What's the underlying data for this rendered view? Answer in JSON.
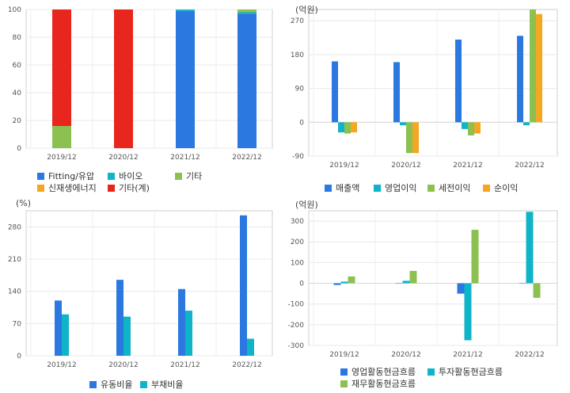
{
  "chart_data": [
    {
      "type": "bar",
      "stacked": true,
      "unit": "",
      "categories": [
        "2019/12",
        "2020/12",
        "2021/12",
        "2022/12"
      ],
      "ylim": [
        0,
        100
      ],
      "yticks": [
        0,
        20,
        40,
        60,
        80,
        100
      ],
      "series": [
        {
          "name": "Fitting/유압",
          "color": "#2a78e0",
          "values": [
            0,
            0,
            99,
            97
          ]
        },
        {
          "name": "바이오",
          "color": "#10b4c8",
          "values": [
            0,
            0,
            1,
            1
          ]
        },
        {
          "name": "기타",
          "color": "#8cc152",
          "values": [
            16,
            0,
            0,
            2
          ]
        },
        {
          "name": "신재생에너지",
          "color": "#f5a623",
          "values": [
            0,
            0,
            0,
            0
          ]
        },
        {
          "name": "기타(계)",
          "color": "#e8261e",
          "values": [
            84,
            100,
            0,
            0
          ]
        }
      ],
      "legend_placement": "bottom",
      "grid": true
    },
    {
      "type": "bar",
      "unit": "(억원)",
      "categories": [
        "2019/12",
        "2020/12",
        "2021/12",
        "2022/12"
      ],
      "ylim": [
        -90,
        300
      ],
      "yticks": [
        -90,
        0,
        90,
        180,
        270
      ],
      "series": [
        {
          "name": "매출액",
          "color": "#2a78e0",
          "values": [
            162,
            160,
            220,
            230
          ]
        },
        {
          "name": "영업이익",
          "color": "#10b4c8",
          "values": [
            -27,
            -8,
            -18,
            -8
          ]
        },
        {
          "name": "세전이익",
          "color": "#8cc152",
          "values": [
            -30,
            -82,
            -35,
            300
          ]
        },
        {
          "name": "순이익",
          "color": "#f5a623",
          "values": [
            -27,
            -82,
            -30,
            288
          ]
        }
      ],
      "legend_placement": "bottom",
      "grid": true
    },
    {
      "type": "bar",
      "unit": "(%)",
      "categories": [
        "2019/12",
        "2020/12",
        "2021/12",
        "2022/12"
      ],
      "ylim": [
        0,
        315
      ],
      "yticks": [
        0,
        70,
        140,
        210,
        280
      ],
      "series": [
        {
          "name": "유동비율",
          "color": "#2a78e0",
          "values": [
            120,
            165,
            145,
            305
          ]
        },
        {
          "name": "부채비율",
          "color": "#10b4c8",
          "values": [
            90,
            85,
            98,
            37
          ]
        }
      ],
      "legend_placement": "bottom",
      "grid": true
    },
    {
      "type": "bar",
      "unit": "(억원)",
      "categories": [
        "2019/12",
        "2020/12",
        "2021/12",
        "2022/12"
      ],
      "ylim": [
        -300,
        350
      ],
      "yticks": [
        -300,
        -200,
        -100,
        0,
        100,
        200,
        300
      ],
      "series": [
        {
          "name": "영업활동현금흐름",
          "color": "#2a78e0",
          "values": [
            -8,
            0,
            -50,
            0
          ]
        },
        {
          "name": "투자활동현금흐름",
          "color": "#10b4c8",
          "values": [
            8,
            12,
            -275,
            345
          ]
        },
        {
          "name": "재무활동현금흐름",
          "color": "#8cc152",
          "values": [
            33,
            60,
            258,
            -70
          ]
        }
      ],
      "legend_placement": "bottom",
      "grid": true
    }
  ]
}
